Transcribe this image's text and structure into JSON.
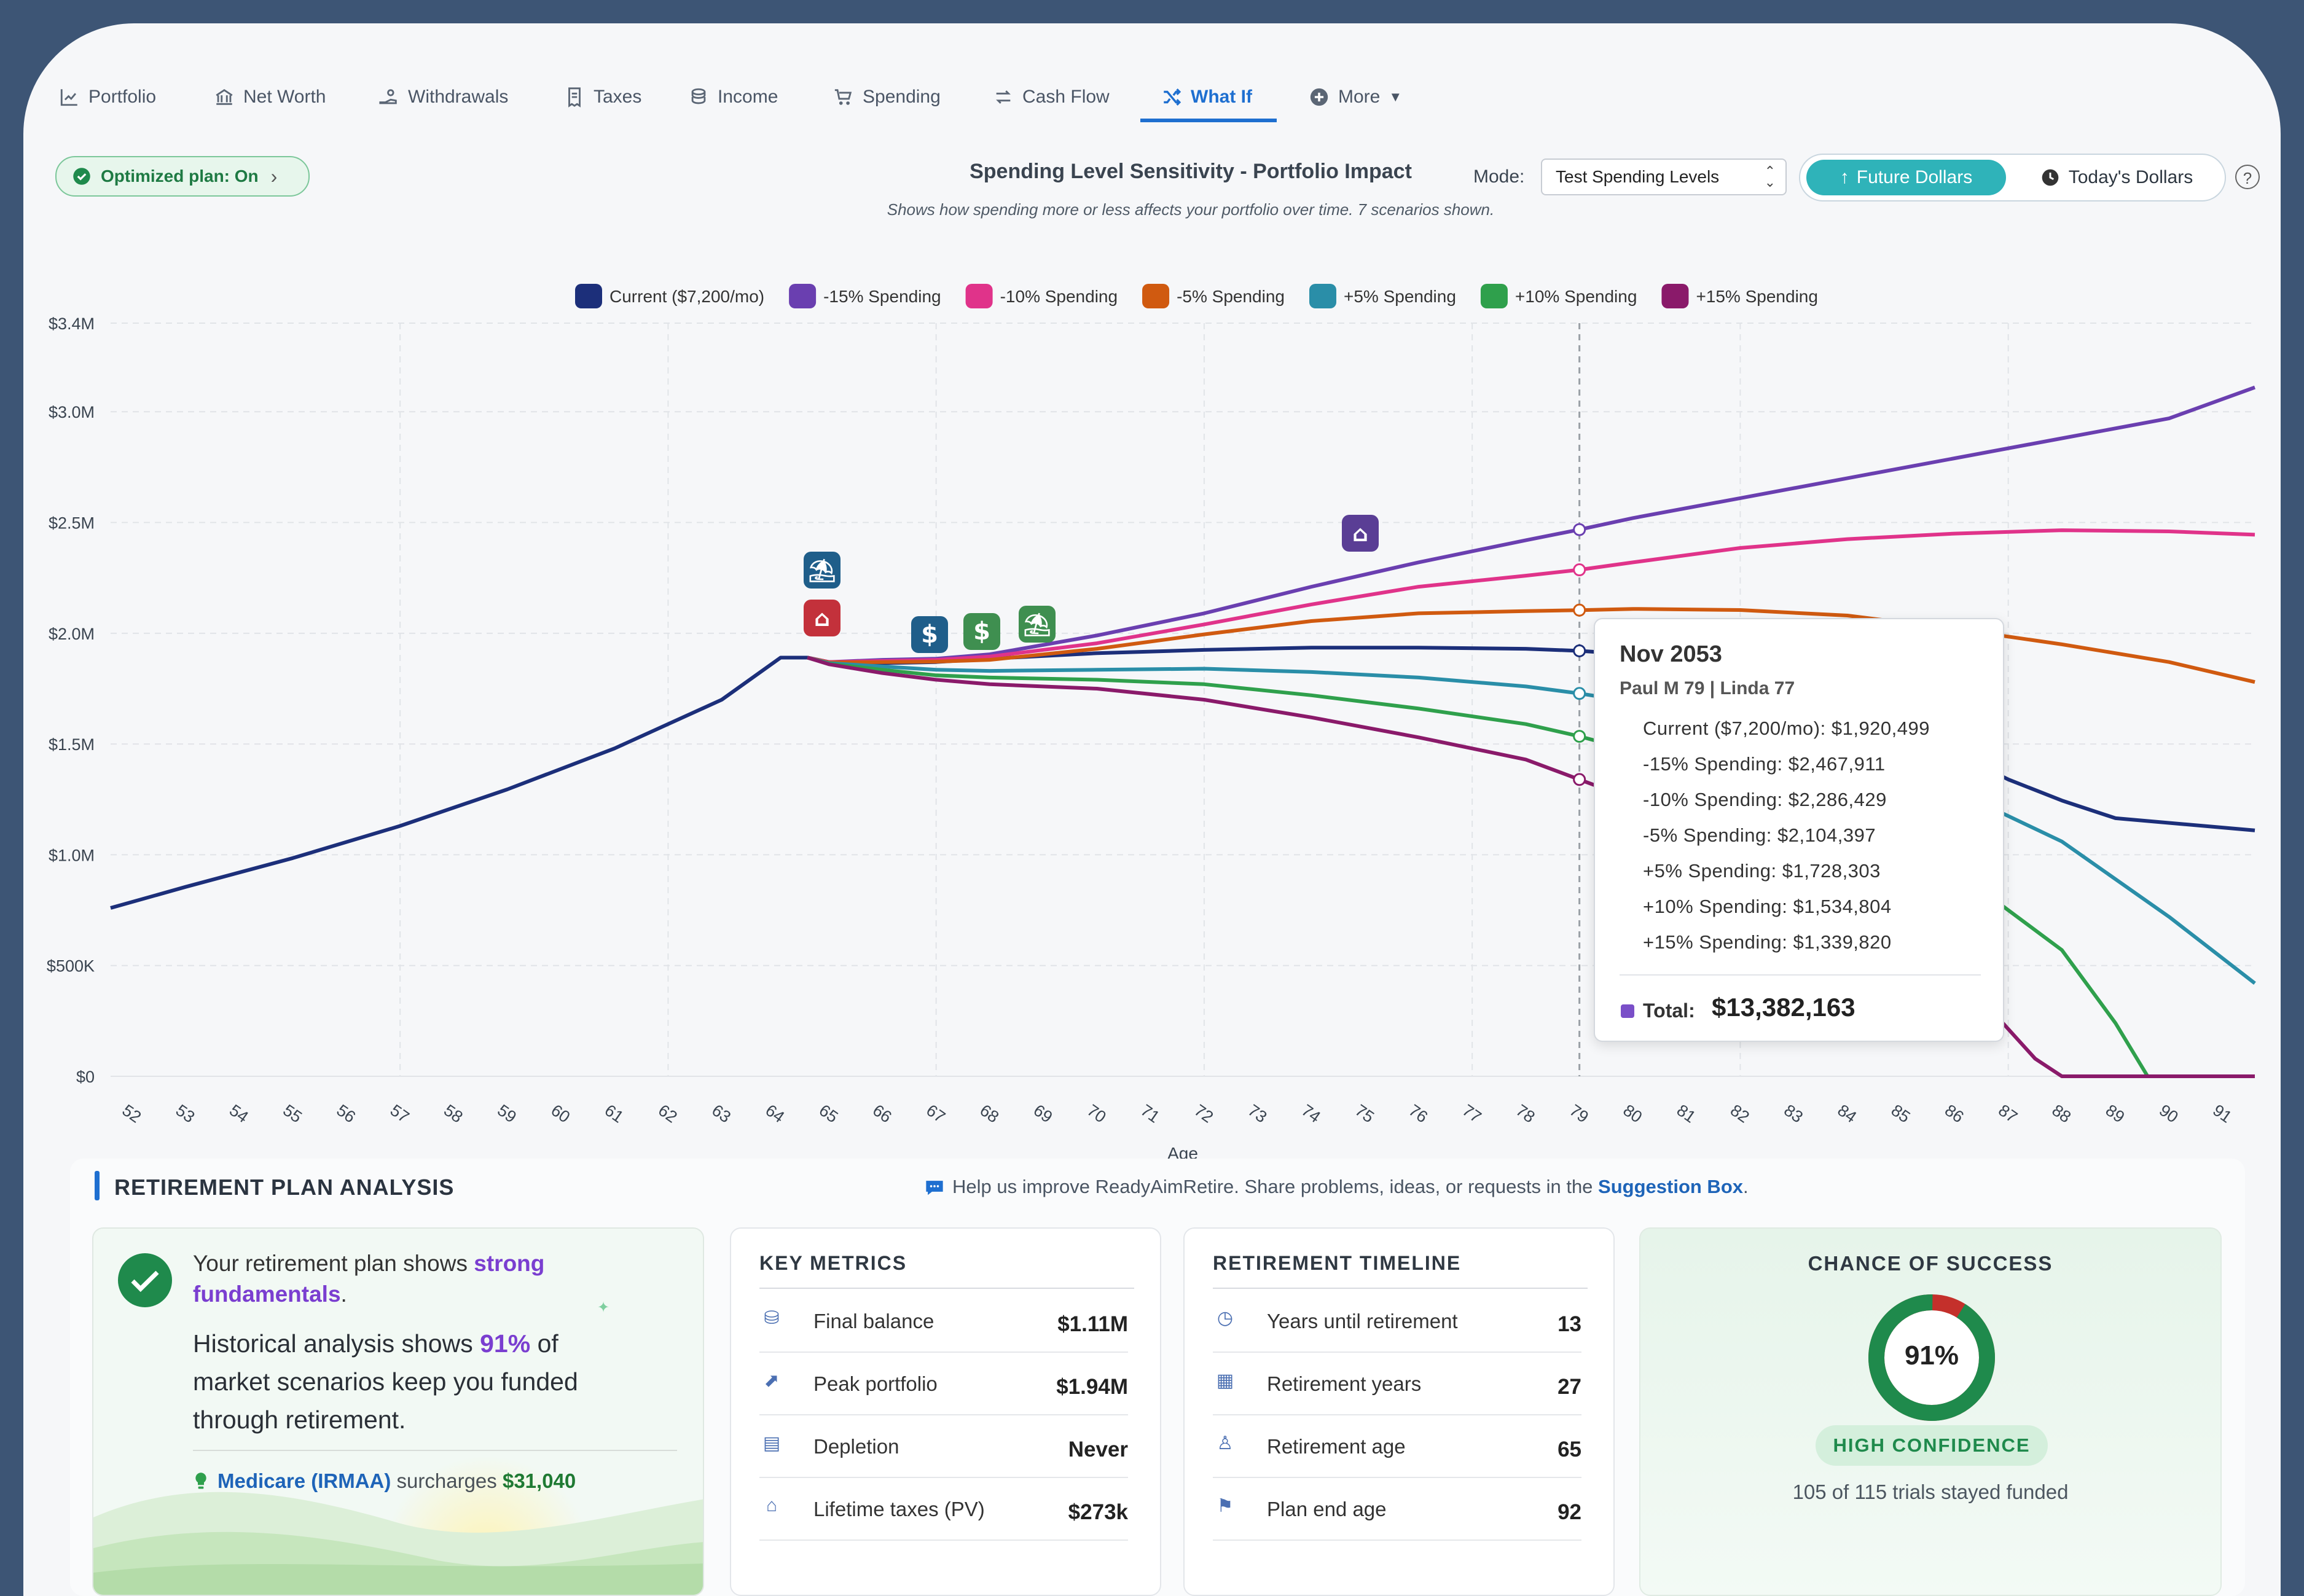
{
  "nav": {
    "items": [
      {
        "label": "Portfolio",
        "icon": "line-chart-icon"
      },
      {
        "label": "Net Worth",
        "icon": "bank-icon"
      },
      {
        "label": "Withdrawals",
        "icon": "hand-coin-icon"
      },
      {
        "label": "Taxes",
        "icon": "receipt-icon"
      },
      {
        "label": "Income",
        "icon": "coins-icon"
      },
      {
        "label": "Spending",
        "icon": "cart-icon"
      },
      {
        "label": "Cash Flow",
        "icon": "swap-arrows-icon"
      },
      {
        "label": "What If",
        "icon": "shuffle-icon",
        "active": true
      },
      {
        "label": "More",
        "icon": "plus-circle-icon"
      }
    ]
  },
  "toolbar": {
    "optimized_label": "Optimized plan: On",
    "chart_title": "Spending Level Sensitivity - Portfolio Impact",
    "chart_subtitle": "Shows how spending more or less affects your portfolio over time. 7 scenarios shown.",
    "mode_label": "Mode:",
    "mode_value": "Test Spending Levels",
    "future_label": "Future Dollars",
    "today_label": "Today's Dollars",
    "help": "?"
  },
  "chart_data": {
    "type": "line",
    "xlabel": "Age",
    "ylabel": "",
    "x": [
      52,
      53,
      54,
      55,
      56,
      57,
      58,
      59,
      60,
      61,
      62,
      63,
      64,
      65,
      66,
      67,
      68,
      69,
      70,
      71,
      72,
      73,
      74,
      75,
      76,
      77,
      78,
      79,
      80,
      81,
      82,
      83,
      84,
      85,
      86,
      87,
      88,
      89,
      90,
      91
    ],
    "xlim": [
      51.6,
      91.6
    ],
    "ylim": [
      0,
      3400000
    ],
    "yticks": [
      {
        "v": 0,
        "label": "$0"
      },
      {
        "v": 500000,
        "label": "$500K"
      },
      {
        "v": 1000000,
        "label": "$1.0M"
      },
      {
        "v": 1500000,
        "label": "$1.5M"
      },
      {
        "v": 2000000,
        "label": "$2.0M"
      },
      {
        "v": 2500000,
        "label": "$2.5M"
      },
      {
        "v": 3000000,
        "label": "$3.0M"
      },
      {
        "v": 3400000,
        "label": "$3.4M"
      }
    ],
    "grid": true,
    "legend_position": "top",
    "hover_age": 79,
    "series": [
      {
        "name": "Current ($7,200/mo)",
        "color": "#1c2f7a",
        "points": [
          [
            51.6,
            760000
          ],
          [
            53,
            855000
          ],
          [
            55,
            985000
          ],
          [
            57,
            1130000
          ],
          [
            59,
            1295000
          ],
          [
            61,
            1480000
          ],
          [
            63,
            1700000
          ],
          [
            64.1,
            1890000
          ],
          [
            64.6,
            1890000
          ],
          [
            65,
            1870000
          ],
          [
            66,
            1865000
          ],
          [
            67,
            1870000
          ],
          [
            68,
            1885000
          ],
          [
            70,
            1910000
          ],
          [
            72,
            1925000
          ],
          [
            74,
            1935000
          ],
          [
            76,
            1935000
          ],
          [
            78,
            1930000
          ],
          [
            79,
            1920499
          ],
          [
            80,
            1905000
          ],
          [
            81,
            1875000
          ],
          [
            82,
            1825000
          ],
          [
            83,
            1755000
          ],
          [
            84,
            1665000
          ],
          [
            85,
            1575000
          ],
          [
            86,
            1460000
          ],
          [
            87,
            1340000
          ],
          [
            88,
            1245000
          ],
          [
            89,
            1165000
          ],
          [
            91.6,
            1110000
          ]
        ]
      },
      {
        "name": "-15% Spending",
        "color": "#6a3fb0",
        "points": [
          [
            64.6,
            1890000
          ],
          [
            65,
            1870000
          ],
          [
            66,
            1880000
          ],
          [
            67,
            1885000
          ],
          [
            68,
            1905000
          ],
          [
            70,
            1990000
          ],
          [
            72,
            2090000
          ],
          [
            74,
            2210000
          ],
          [
            76,
            2320000
          ],
          [
            78,
            2420000
          ],
          [
            79,
            2467911
          ],
          [
            80,
            2520000
          ],
          [
            82,
            2610000
          ],
          [
            84,
            2700000
          ],
          [
            86,
            2790000
          ],
          [
            88,
            2880000
          ],
          [
            90,
            2970000
          ],
          [
            91.6,
            3110000
          ]
        ]
      },
      {
        "name": "-10% Spending",
        "color": "#e0338a",
        "points": [
          [
            64.6,
            1890000
          ],
          [
            65,
            1870000
          ],
          [
            66,
            1875000
          ],
          [
            67,
            1880000
          ],
          [
            68,
            1895000
          ],
          [
            70,
            1955000
          ],
          [
            72,
            2040000
          ],
          [
            74,
            2130000
          ],
          [
            76,
            2210000
          ],
          [
            78,
            2260000
          ],
          [
            79,
            2286429
          ],
          [
            80,
            2320000
          ],
          [
            82,
            2385000
          ],
          [
            84,
            2425000
          ],
          [
            86,
            2450000
          ],
          [
            88,
            2465000
          ],
          [
            90,
            2460000
          ],
          [
            91.6,
            2445000
          ]
        ]
      },
      {
        "name": "-5% Spending",
        "color": "#d05a10",
        "points": [
          [
            64.6,
            1890000
          ],
          [
            65,
            1868000
          ],
          [
            66,
            1870000
          ],
          [
            67,
            1872000
          ],
          [
            68,
            1880000
          ],
          [
            70,
            1930000
          ],
          [
            72,
            1995000
          ],
          [
            74,
            2055000
          ],
          [
            76,
            2090000
          ],
          [
            78,
            2100000
          ],
          [
            79,
            2104397
          ],
          [
            80,
            2110000
          ],
          [
            82,
            2105000
          ],
          [
            84,
            2080000
          ],
          [
            86,
            2020000
          ],
          [
            88,
            1950000
          ],
          [
            90,
            1870000
          ],
          [
            91.6,
            1780000
          ]
        ]
      },
      {
        "name": "+5% Spending",
        "color": "#2a8ea8",
        "points": [
          [
            64.6,
            1890000
          ],
          [
            65,
            1865000
          ],
          [
            66,
            1850000
          ],
          [
            67,
            1835000
          ],
          [
            68,
            1830000
          ],
          [
            70,
            1835000
          ],
          [
            72,
            1840000
          ],
          [
            74,
            1825000
          ],
          [
            76,
            1800000
          ],
          [
            78,
            1760000
          ],
          [
            79,
            1728303
          ],
          [
            80,
            1690000
          ],
          [
            82,
            1600000
          ],
          [
            84,
            1470000
          ],
          [
            86,
            1290000
          ],
          [
            88,
            1060000
          ],
          [
            90,
            720000
          ],
          [
            91.6,
            420000
          ]
        ]
      },
      {
        "name": "+10% Spending",
        "color": "#2fa04c",
        "points": [
          [
            64.6,
            1890000
          ],
          [
            65,
            1862000
          ],
          [
            66,
            1835000
          ],
          [
            67,
            1810000
          ],
          [
            68,
            1800000
          ],
          [
            70,
            1790000
          ],
          [
            72,
            1770000
          ],
          [
            74,
            1720000
          ],
          [
            76,
            1660000
          ],
          [
            78,
            1590000
          ],
          [
            79,
            1534804
          ],
          [
            80,
            1470000
          ],
          [
            82,
            1340000
          ],
          [
            84,
            1160000
          ],
          [
            86,
            930000
          ],
          [
            88,
            570000
          ],
          [
            89,
            240000
          ],
          [
            89.6,
            0
          ],
          [
            91.6,
            0
          ]
        ]
      },
      {
        "name": "+15% Spending",
        "color": "#8a1a6a",
        "points": [
          [
            64.6,
            1890000
          ],
          [
            65,
            1860000
          ],
          [
            66,
            1820000
          ],
          [
            67,
            1790000
          ],
          [
            68,
            1770000
          ],
          [
            70,
            1750000
          ],
          [
            72,
            1700000
          ],
          [
            74,
            1620000
          ],
          [
            76,
            1530000
          ],
          [
            78,
            1430000
          ],
          [
            79,
            1339820
          ],
          [
            80,
            1250000
          ],
          [
            82,
            1050000
          ],
          [
            84,
            810000
          ],
          [
            86,
            480000
          ],
          [
            87.5,
            80000
          ],
          [
            88,
            0
          ],
          [
            91.6,
            0
          ]
        ]
      }
    ],
    "markers": [
      {
        "icon": "beach-umbrella-icon",
        "color": "#1f5e8a"
      },
      {
        "icon": "home-icon",
        "color": "#c3313b"
      },
      {
        "icon": "dollar-icon",
        "color": "#1f5e8a"
      },
      {
        "icon": "dollar-icon",
        "color": "#3f8f50"
      },
      {
        "icon": "beach-umbrella-icon",
        "color": "#3f8f50"
      },
      {
        "icon": "bank-icon",
        "color": "#5a3e95"
      }
    ]
  },
  "tooltip": {
    "date": "Nov 2053",
    "people": "Paul M 79 | Linda 77",
    "rows": [
      "Current ($7,200/mo): $1,920,499",
      "-15% Spending: $2,467,911",
      "-10% Spending: $2,286,429",
      "-5% Spending: $2,104,397",
      "+5% Spending: $1,728,303",
      "+10% Spending: $1,534,804",
      "+15% Spending: $1,339,820"
    ],
    "total_label": "Total:",
    "total_value": "$13,382,163"
  },
  "analysis": {
    "title": "RETIREMENT PLAN ANALYSIS",
    "feedback_text": "Help us improve ReadyAimRetire. Share problems, ideas, or requests in the",
    "feedback_link": "Suggestion Box",
    "feedback_end": ".",
    "summary": {
      "line1_a": "Your retirement plan shows ",
      "line1_b": "strong",
      "line2_b": "fundamentals",
      "line2_c": ".",
      "hist_a": "Historical analysis shows ",
      "hist_b": "91%",
      "hist_c": " of",
      "hist_line2": "market scenarios keep you funded",
      "hist_line3": "through retirement.",
      "medicare_link": "Medicare (IRMAA)",
      "medicare_text": " surcharges ",
      "medicare_value": "$31,040"
    },
    "key_metrics": {
      "title": "KEY METRICS",
      "rows": [
        {
          "label": "Final balance",
          "value": "$1.11M",
          "icon": "money-bag-icon"
        },
        {
          "label": "Peak portfolio",
          "value": "$1.94M",
          "icon": "trend-up-icon"
        },
        {
          "label": "Depletion",
          "value": "Never",
          "icon": "calculator-icon"
        },
        {
          "label": "Lifetime taxes (PV)",
          "value": "$273k",
          "icon": "bank-icon"
        }
      ]
    },
    "timeline": {
      "title": "RETIREMENT TIMELINE",
      "rows": [
        {
          "label": "Years until retirement",
          "value": "13",
          "icon": "clock-icon"
        },
        {
          "label": "Retirement years",
          "value": "27",
          "icon": "calendar-icon"
        },
        {
          "label": "Retirement age",
          "value": "65",
          "icon": "person-icon"
        },
        {
          "label": "Plan end age",
          "value": "92",
          "icon": "flag-icon"
        }
      ]
    },
    "success": {
      "title": "CHANCE OF SUCCESS",
      "percent_label": "91%",
      "fraction": 0.913,
      "badge": "HIGH CONFIDENCE",
      "trials": "105 of 115 trials stayed funded"
    }
  }
}
